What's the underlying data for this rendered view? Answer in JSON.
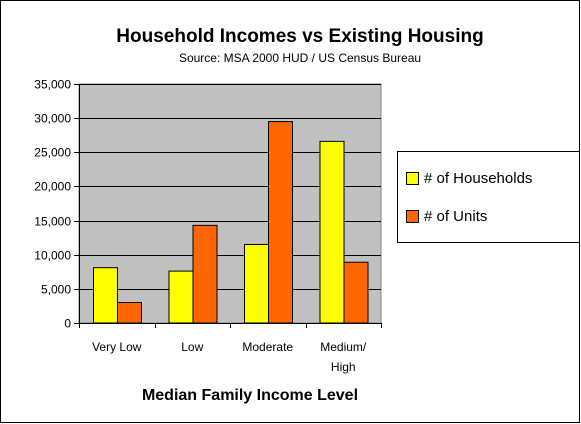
{
  "chart_data": {
    "type": "bar",
    "title": "Household Incomes vs Existing Housing",
    "subtitle": "Source: MSA 2000 HUD / US Census Bureau",
    "xlabel": "Median Family Income Level",
    "ylabel": "",
    "categories": [
      [
        "Very Low"
      ],
      [
        "Low"
      ],
      [
        "Moderate"
      ],
      [
        "Medium/",
        "High"
      ]
    ],
    "series": [
      {
        "name": "# of Households",
        "color": "#ffff00",
        "values": [
          8100,
          7600,
          11500,
          26600
        ]
      },
      {
        "name": "# of Units",
        "color": "#ff6600",
        "values": [
          3000,
          14300,
          29500,
          8900
        ]
      }
    ],
    "ylim": [
      0,
      35000
    ],
    "yticks": [
      0,
      5000,
      10000,
      15000,
      20000,
      25000,
      30000,
      35000
    ],
    "ytick_labels": [
      "0",
      "5,000",
      "10,000",
      "15,000",
      "20,000",
      "25,000",
      "30,000",
      "35,000"
    ],
    "grid": true,
    "plot_background": "#c0c0c0",
    "legend_position": "right"
  }
}
